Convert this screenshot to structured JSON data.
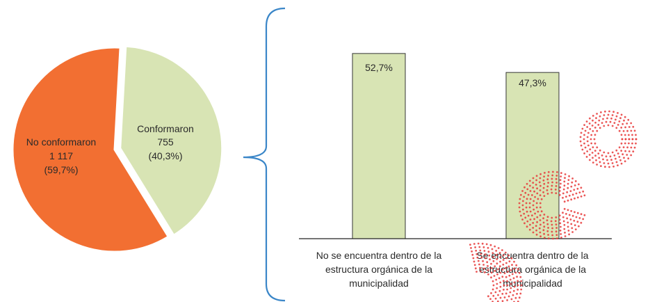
{
  "chart_data": [
    {
      "type": "pie",
      "slices": [
        {
          "label_lines": [
            "Conformaron",
            "755",
            "(40,3%)"
          ],
          "value": 755,
          "percent": 40.3,
          "color": "#d8e4b4",
          "exploded": true
        },
        {
          "label_lines": [
            "No conformaron",
            "1 117",
            "(59,7%)"
          ],
          "value": 1117,
          "percent": 59.7,
          "color": "#f26f32",
          "exploded": false
        }
      ]
    },
    {
      "type": "bar",
      "categories": [
        [
          "No se encuentra dentro de la",
          "estructura orgánica de la",
          "municipalidad"
        ],
        [
          "Se encuentra dentro de la",
          "estructura orgánica de la",
          "municipalidad"
        ]
      ],
      "values": [
        52.7,
        47.3
      ],
      "value_labels": [
        "52,7%",
        "47,3%"
      ],
      "ylim": [
        0,
        60
      ],
      "bar_color": "#d8e4b4",
      "grid": false
    }
  ],
  "colors": {
    "brace": "#3a86c8",
    "bar_outline": "#333333",
    "pie_outline": "#ffffff",
    "watermark": "#e83a3a"
  }
}
